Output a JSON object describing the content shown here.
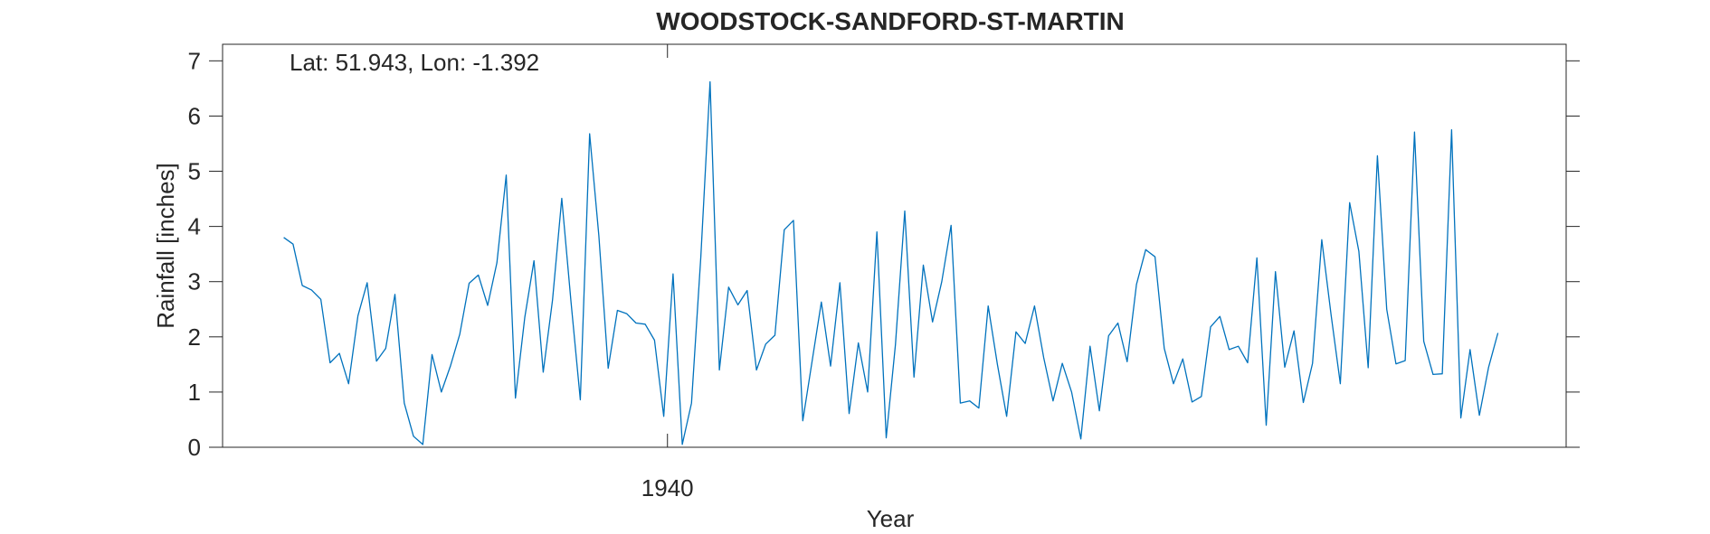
{
  "chart_data": {
    "type": "line",
    "title": "WOODSTOCK-SANDFORD-ST-MARTIN",
    "xlabel": "Year",
    "ylabel": "Rainfall [inches]",
    "annotation": "Lat: 51.943, Lon: -1.392",
    "xlim": [
      1930.0,
      1960.2
    ],
    "ylim": [
      0,
      7.3
    ],
    "x_ticks": [
      {
        "value": 1940,
        "label": "1940"
      }
    ],
    "y_ticks": [
      {
        "value": 0,
        "label": "0"
      },
      {
        "value": 1,
        "label": "1"
      },
      {
        "value": 2,
        "label": "2"
      },
      {
        "value": 3,
        "label": "3"
      },
      {
        "value": 4,
        "label": "4"
      },
      {
        "value": 5,
        "label": "5"
      },
      {
        "value": 6,
        "label": "6"
      },
      {
        "value": 7,
        "label": "7"
      }
    ],
    "grid": false,
    "line_color": "#0072BD",
    "series": [
      {
        "x_start": 1931.375,
        "x_step": 0.20833,
        "values": [
          3.8,
          3.68,
          2.93,
          2.85,
          2.68,
          1.53,
          1.7,
          1.15,
          2.38,
          2.98,
          1.56,
          1.79,
          2.77,
          0.8,
          0.2,
          0.05,
          1.68,
          1.0,
          1.48,
          2.05,
          2.97,
          3.12,
          2.57,
          3.34,
          4.93,
          0.89,
          2.35,
          3.38,
          1.36,
          2.67,
          4.51,
          2.62,
          0.86,
          5.68,
          3.83,
          1.43,
          2.48,
          2.42,
          2.25,
          2.23,
          1.94,
          0.56,
          3.14,
          0.05,
          0.8,
          3.45,
          6.62,
          1.4,
          2.9,
          2.58,
          2.84,
          1.4,
          1.87,
          2.03,
          3.94,
          4.11,
          0.48,
          1.55,
          2.63,
          1.47,
          2.98,
          0.61,
          1.89,
          1.0,
          3.9,
          0.17,
          1.86,
          4.28,
          1.27,
          3.3,
          2.27,
          3.0,
          4.02,
          0.8,
          0.84,
          0.71,
          2.56,
          1.5,
          0.56,
          2.09,
          1.88,
          2.56,
          1.62,
          0.84,
          1.52,
          1.0,
          0.15,
          1.83,
          0.66,
          2.02,
          2.25,
          1.55,
          2.95,
          3.58,
          3.45,
          1.79,
          1.15,
          1.6,
          0.82,
          0.92,
          2.18,
          2.37,
          1.77,
          1.83,
          1.53,
          3.43,
          0.4,
          3.18,
          1.45,
          2.11,
          0.81,
          1.52,
          3.76,
          2.4,
          1.15,
          4.43,
          3.55,
          1.44,
          5.28,
          2.5,
          1.51,
          1.57,
          5.71,
          1.92,
          1.32,
          1.33,
          5.75,
          0.53,
          1.77,
          0.58,
          1.45,
          2.07
        ]
      }
    ]
  }
}
